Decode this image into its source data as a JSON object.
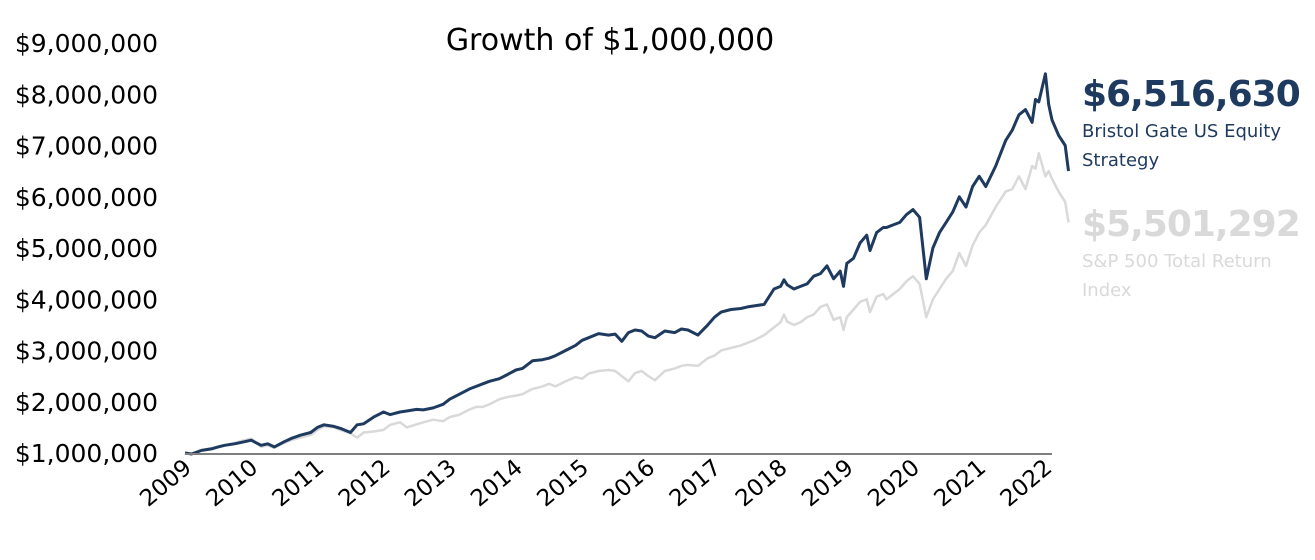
{
  "chart_data": {
    "type": "line",
    "title": "Growth of $1,000,000",
    "xlabel": "",
    "ylabel": "",
    "xlim": [
      2009.0,
      2022.1
    ],
    "ylim": [
      1000000,
      9000000
    ],
    "y_ticks": [
      1000000,
      2000000,
      3000000,
      4000000,
      5000000,
      6000000,
      7000000,
      8000000,
      9000000
    ],
    "y_tick_labels": [
      "$1,000,000",
      "$2,000,000",
      "$3,000,000",
      "$4,000,000",
      "$5,000,000",
      "$6,000,000",
      "$7,000,000",
      "$8,000,000",
      "$9,000,000"
    ],
    "x_ticks": [
      2009,
      2010,
      2011,
      2012,
      2013,
      2014,
      2015,
      2016,
      2017,
      2018,
      2019,
      2020,
      2021,
      2022
    ],
    "x_tick_labels": [
      "2009",
      "2010",
      "2011",
      "2012",
      "2013",
      "2014",
      "2015",
      "2016",
      "2017",
      "2018",
      "2019",
      "2020",
      "2021",
      "2022"
    ],
    "grid": false,
    "legend_position": "right",
    "series": [
      {
        "name": "S&P 500 Total Return Index",
        "end_value_label": "$5,501,292",
        "color": "#d9d9d9",
        "points": [
          [
            2009.0,
            1000000
          ],
          [
            2009.1,
            980000
          ],
          [
            2009.25,
            1050000
          ],
          [
            2009.4,
            1100000
          ],
          [
            2009.5,
            1120000
          ],
          [
            2009.6,
            1150000
          ],
          [
            2009.75,
            1200000
          ],
          [
            2009.9,
            1250000
          ],
          [
            2010.0,
            1280000
          ],
          [
            2010.15,
            1120000
          ],
          [
            2010.25,
            1150000
          ],
          [
            2010.35,
            1100000
          ],
          [
            2010.5,
            1200000
          ],
          [
            2010.6,
            1250000
          ],
          [
            2010.75,
            1300000
          ],
          [
            2010.9,
            1350000
          ],
          [
            2011.0,
            1450000
          ],
          [
            2011.1,
            1520000
          ],
          [
            2011.25,
            1500000
          ],
          [
            2011.35,
            1450000
          ],
          [
            2011.5,
            1380000
          ],
          [
            2011.6,
            1300000
          ],
          [
            2011.7,
            1400000
          ],
          [
            2011.85,
            1420000
          ],
          [
            2012.0,
            1450000
          ],
          [
            2012.1,
            1550000
          ],
          [
            2012.25,
            1600000
          ],
          [
            2012.35,
            1500000
          ],
          [
            2012.5,
            1560000
          ],
          [
            2012.6,
            1600000
          ],
          [
            2012.75,
            1650000
          ],
          [
            2012.9,
            1620000
          ],
          [
            2013.0,
            1700000
          ],
          [
            2013.15,
            1750000
          ],
          [
            2013.3,
            1850000
          ],
          [
            2013.4,
            1900000
          ],
          [
            2013.5,
            1900000
          ],
          [
            2013.6,
            1950000
          ],
          [
            2013.75,
            2050000
          ],
          [
            2013.9,
            2100000
          ],
          [
            2014.0,
            2120000
          ],
          [
            2014.1,
            2150000
          ],
          [
            2014.25,
            2250000
          ],
          [
            2014.4,
            2300000
          ],
          [
            2014.5,
            2350000
          ],
          [
            2014.6,
            2300000
          ],
          [
            2014.75,
            2400000
          ],
          [
            2014.9,
            2480000
          ],
          [
            2015.0,
            2450000
          ],
          [
            2015.1,
            2550000
          ],
          [
            2015.25,
            2600000
          ],
          [
            2015.4,
            2620000
          ],
          [
            2015.5,
            2600000
          ],
          [
            2015.6,
            2500000
          ],
          [
            2015.7,
            2400000
          ],
          [
            2015.8,
            2560000
          ],
          [
            2015.9,
            2600000
          ],
          [
            2016.0,
            2500000
          ],
          [
            2016.1,
            2420000
          ],
          [
            2016.25,
            2600000
          ],
          [
            2016.4,
            2650000
          ],
          [
            2016.5,
            2700000
          ],
          [
            2016.6,
            2720000
          ],
          [
            2016.75,
            2700000
          ],
          [
            2016.9,
            2850000
          ],
          [
            2017.0,
            2900000
          ],
          [
            2017.1,
            3000000
          ],
          [
            2017.25,
            3050000
          ],
          [
            2017.4,
            3100000
          ],
          [
            2017.5,
            3150000
          ],
          [
            2017.6,
            3200000
          ],
          [
            2017.75,
            3300000
          ],
          [
            2017.9,
            3450000
          ],
          [
            2018.0,
            3550000
          ],
          [
            2018.05,
            3700000
          ],
          [
            2018.1,
            3560000
          ],
          [
            2018.2,
            3500000
          ],
          [
            2018.3,
            3550000
          ],
          [
            2018.4,
            3650000
          ],
          [
            2018.5,
            3700000
          ],
          [
            2018.6,
            3850000
          ],
          [
            2018.7,
            3900000
          ],
          [
            2018.8,
            3600000
          ],
          [
            2018.9,
            3650000
          ],
          [
            2018.95,
            3400000
          ],
          [
            2019.0,
            3650000
          ],
          [
            2019.1,
            3800000
          ],
          [
            2019.2,
            3950000
          ],
          [
            2019.3,
            4000000
          ],
          [
            2019.35,
            3750000
          ],
          [
            2019.45,
            4050000
          ],
          [
            2019.55,
            4100000
          ],
          [
            2019.6,
            4000000
          ],
          [
            2019.7,
            4100000
          ],
          [
            2019.8,
            4200000
          ],
          [
            2019.9,
            4350000
          ],
          [
            2020.0,
            4450000
          ],
          [
            2020.1,
            4300000
          ],
          [
            2020.2,
            3650000
          ],
          [
            2020.3,
            4000000
          ],
          [
            2020.4,
            4200000
          ],
          [
            2020.5,
            4400000
          ],
          [
            2020.6,
            4550000
          ],
          [
            2020.7,
            4900000
          ],
          [
            2020.8,
            4650000
          ],
          [
            2020.9,
            5050000
          ],
          [
            2021.0,
            5300000
          ],
          [
            2021.1,
            5450000
          ],
          [
            2021.25,
            5800000
          ],
          [
            2021.4,
            6100000
          ],
          [
            2021.5,
            6150000
          ],
          [
            2021.6,
            6400000
          ],
          [
            2021.7,
            6150000
          ],
          [
            2021.8,
            6600000
          ],
          [
            2021.85,
            6550000
          ],
          [
            2021.9,
            6850000
          ],
          [
            2022.0,
            6400000
          ],
          [
            2022.05,
            6500000
          ],
          [
            2022.1,
            6350000
          ],
          [
            2022.2,
            6100000
          ],
          [
            2022.3,
            5900000
          ],
          [
            2022.35,
            5500000
          ]
        ]
      },
      {
        "name": "Bristol Gate US Equity Strategy",
        "end_value_label": "$6,516,630",
        "color": "#1f3a5f",
        "points": [
          [
            2009.0,
            1000000
          ],
          [
            2009.1,
            980000
          ],
          [
            2009.25,
            1050000
          ],
          [
            2009.4,
            1080000
          ],
          [
            2009.5,
            1120000
          ],
          [
            2009.6,
            1150000
          ],
          [
            2009.75,
            1180000
          ],
          [
            2009.9,
            1220000
          ],
          [
            2010.0,
            1250000
          ],
          [
            2010.15,
            1150000
          ],
          [
            2010.25,
            1180000
          ],
          [
            2010.35,
            1120000
          ],
          [
            2010.5,
            1220000
          ],
          [
            2010.6,
            1280000
          ],
          [
            2010.75,
            1350000
          ],
          [
            2010.9,
            1400000
          ],
          [
            2011.0,
            1500000
          ],
          [
            2011.1,
            1550000
          ],
          [
            2011.25,
            1520000
          ],
          [
            2011.35,
            1480000
          ],
          [
            2011.5,
            1400000
          ],
          [
            2011.6,
            1550000
          ],
          [
            2011.7,
            1570000
          ],
          [
            2011.85,
            1700000
          ],
          [
            2012.0,
            1800000
          ],
          [
            2012.1,
            1750000
          ],
          [
            2012.25,
            1800000
          ],
          [
            2012.35,
            1820000
          ],
          [
            2012.5,
            1850000
          ],
          [
            2012.6,
            1840000
          ],
          [
            2012.75,
            1880000
          ],
          [
            2012.9,
            1950000
          ],
          [
            2013.0,
            2050000
          ],
          [
            2013.15,
            2150000
          ],
          [
            2013.3,
            2250000
          ],
          [
            2013.4,
            2300000
          ],
          [
            2013.5,
            2350000
          ],
          [
            2013.6,
            2400000
          ],
          [
            2013.75,
            2450000
          ],
          [
            2013.9,
            2550000
          ],
          [
            2014.0,
            2620000
          ],
          [
            2014.1,
            2650000
          ],
          [
            2014.25,
            2800000
          ],
          [
            2014.4,
            2820000
          ],
          [
            2014.5,
            2850000
          ],
          [
            2014.6,
            2900000
          ],
          [
            2014.75,
            3000000
          ],
          [
            2014.9,
            3100000
          ],
          [
            2015.0,
            3200000
          ],
          [
            2015.1,
            3250000
          ],
          [
            2015.25,
            3330000
          ],
          [
            2015.4,
            3300000
          ],
          [
            2015.5,
            3320000
          ],
          [
            2015.6,
            3180000
          ],
          [
            2015.7,
            3350000
          ],
          [
            2015.8,
            3400000
          ],
          [
            2015.9,
            3380000
          ],
          [
            2016.0,
            3280000
          ],
          [
            2016.1,
            3250000
          ],
          [
            2016.25,
            3380000
          ],
          [
            2016.4,
            3350000
          ],
          [
            2016.5,
            3420000
          ],
          [
            2016.6,
            3400000
          ],
          [
            2016.75,
            3300000
          ],
          [
            2016.9,
            3500000
          ],
          [
            2017.0,
            3650000
          ],
          [
            2017.1,
            3750000
          ],
          [
            2017.25,
            3800000
          ],
          [
            2017.4,
            3820000
          ],
          [
            2017.5,
            3850000
          ],
          [
            2017.6,
            3870000
          ],
          [
            2017.75,
            3900000
          ],
          [
            2017.9,
            4200000
          ],
          [
            2018.0,
            4250000
          ],
          [
            2018.05,
            4380000
          ],
          [
            2018.1,
            4280000
          ],
          [
            2018.2,
            4200000
          ],
          [
            2018.3,
            4250000
          ],
          [
            2018.4,
            4300000
          ],
          [
            2018.5,
            4450000
          ],
          [
            2018.6,
            4500000
          ],
          [
            2018.7,
            4650000
          ],
          [
            2018.8,
            4400000
          ],
          [
            2018.9,
            4550000
          ],
          [
            2018.95,
            4250000
          ],
          [
            2019.0,
            4700000
          ],
          [
            2019.1,
            4800000
          ],
          [
            2019.2,
            5100000
          ],
          [
            2019.3,
            5250000
          ],
          [
            2019.35,
            4950000
          ],
          [
            2019.45,
            5300000
          ],
          [
            2019.55,
            5400000
          ],
          [
            2019.6,
            5400000
          ],
          [
            2019.7,
            5450000
          ],
          [
            2019.8,
            5500000
          ],
          [
            2019.9,
            5650000
          ],
          [
            2020.0,
            5750000
          ],
          [
            2020.1,
            5600000
          ],
          [
            2020.2,
            4400000
          ],
          [
            2020.3,
            5000000
          ],
          [
            2020.4,
            5300000
          ],
          [
            2020.5,
            5500000
          ],
          [
            2020.6,
            5700000
          ],
          [
            2020.7,
            6000000
          ],
          [
            2020.8,
            5800000
          ],
          [
            2020.9,
            6200000
          ],
          [
            2021.0,
            6400000
          ],
          [
            2021.1,
            6200000
          ],
          [
            2021.25,
            6600000
          ],
          [
            2021.4,
            7100000
          ],
          [
            2021.5,
            7300000
          ],
          [
            2021.6,
            7600000
          ],
          [
            2021.7,
            7700000
          ],
          [
            2021.8,
            7450000
          ],
          [
            2021.85,
            7900000
          ],
          [
            2021.9,
            7850000
          ],
          [
            2022.0,
            8400000
          ],
          [
            2022.05,
            7800000
          ],
          [
            2022.1,
            7500000
          ],
          [
            2022.2,
            7200000
          ],
          [
            2022.3,
            7000000
          ],
          [
            2022.35,
            6500000
          ]
        ]
      }
    ]
  },
  "legend": {
    "strategy": {
      "value": "$6,516,630",
      "label_line1": "Bristol Gate US Equity",
      "label_line2": "Strategy",
      "color": "#1f3a5f"
    },
    "index": {
      "value": "$5,501,292",
      "label_line1": "S&P 500 Total Return",
      "label_line2": "Index",
      "color": "#d9d9d9"
    }
  }
}
